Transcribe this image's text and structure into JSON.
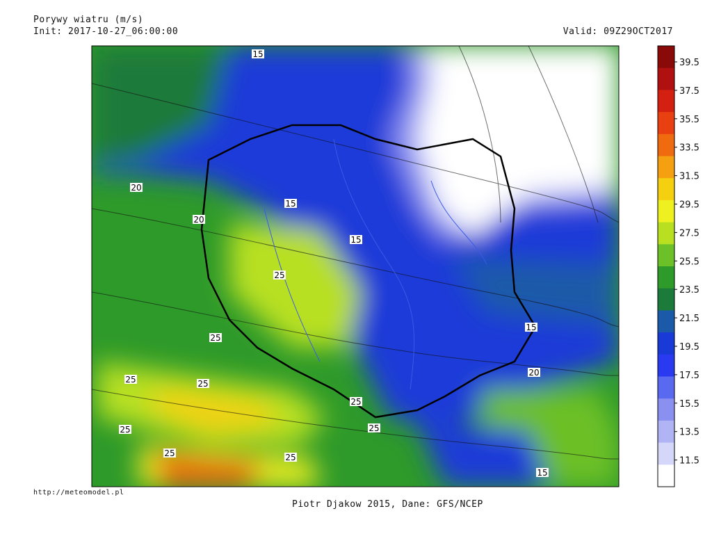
{
  "header": {
    "title": "Porywy wiatru (m/s)",
    "init": "Init: 2017-10-27_06:00:00",
    "valid": "Valid: 09Z29OCT2017"
  },
  "footer": {
    "source_url": "http://meteomodel.pl",
    "credit": "Piotr Djakow 2015, Dane: GFS/NCEP"
  },
  "colorbar": {
    "labels": [
      "39.5",
      "37.5",
      "35.5",
      "33.5",
      "31.5",
      "29.5",
      "27.5",
      "25.5",
      "23.5",
      "21.5",
      "19.5",
      "17.5",
      "15.5",
      "13.5",
      "11.5"
    ],
    "colors": [
      "#8a0a0a",
      "#b01010",
      "#d42010",
      "#e84010",
      "#f06a10",
      "#f5a010",
      "#f5d010",
      "#eef020",
      "#b8e020",
      "#6cc028",
      "#2e9a2a",
      "#1c7a3a",
      "#1a5aa8",
      "#1a3ad8",
      "#2a3af0",
      "#5a6af0",
      "#8a90f0",
      "#b0b4f4",
      "#d4d6fa",
      "#ffffff"
    ]
  },
  "map": {
    "contour_labels": [
      "15",
      "20",
      "20",
      "15",
      "15",
      "25",
      "25",
      "25",
      "25",
      "25",
      "25",
      "25",
      "25",
      "25",
      "15",
      "20",
      "15"
    ]
  }
}
